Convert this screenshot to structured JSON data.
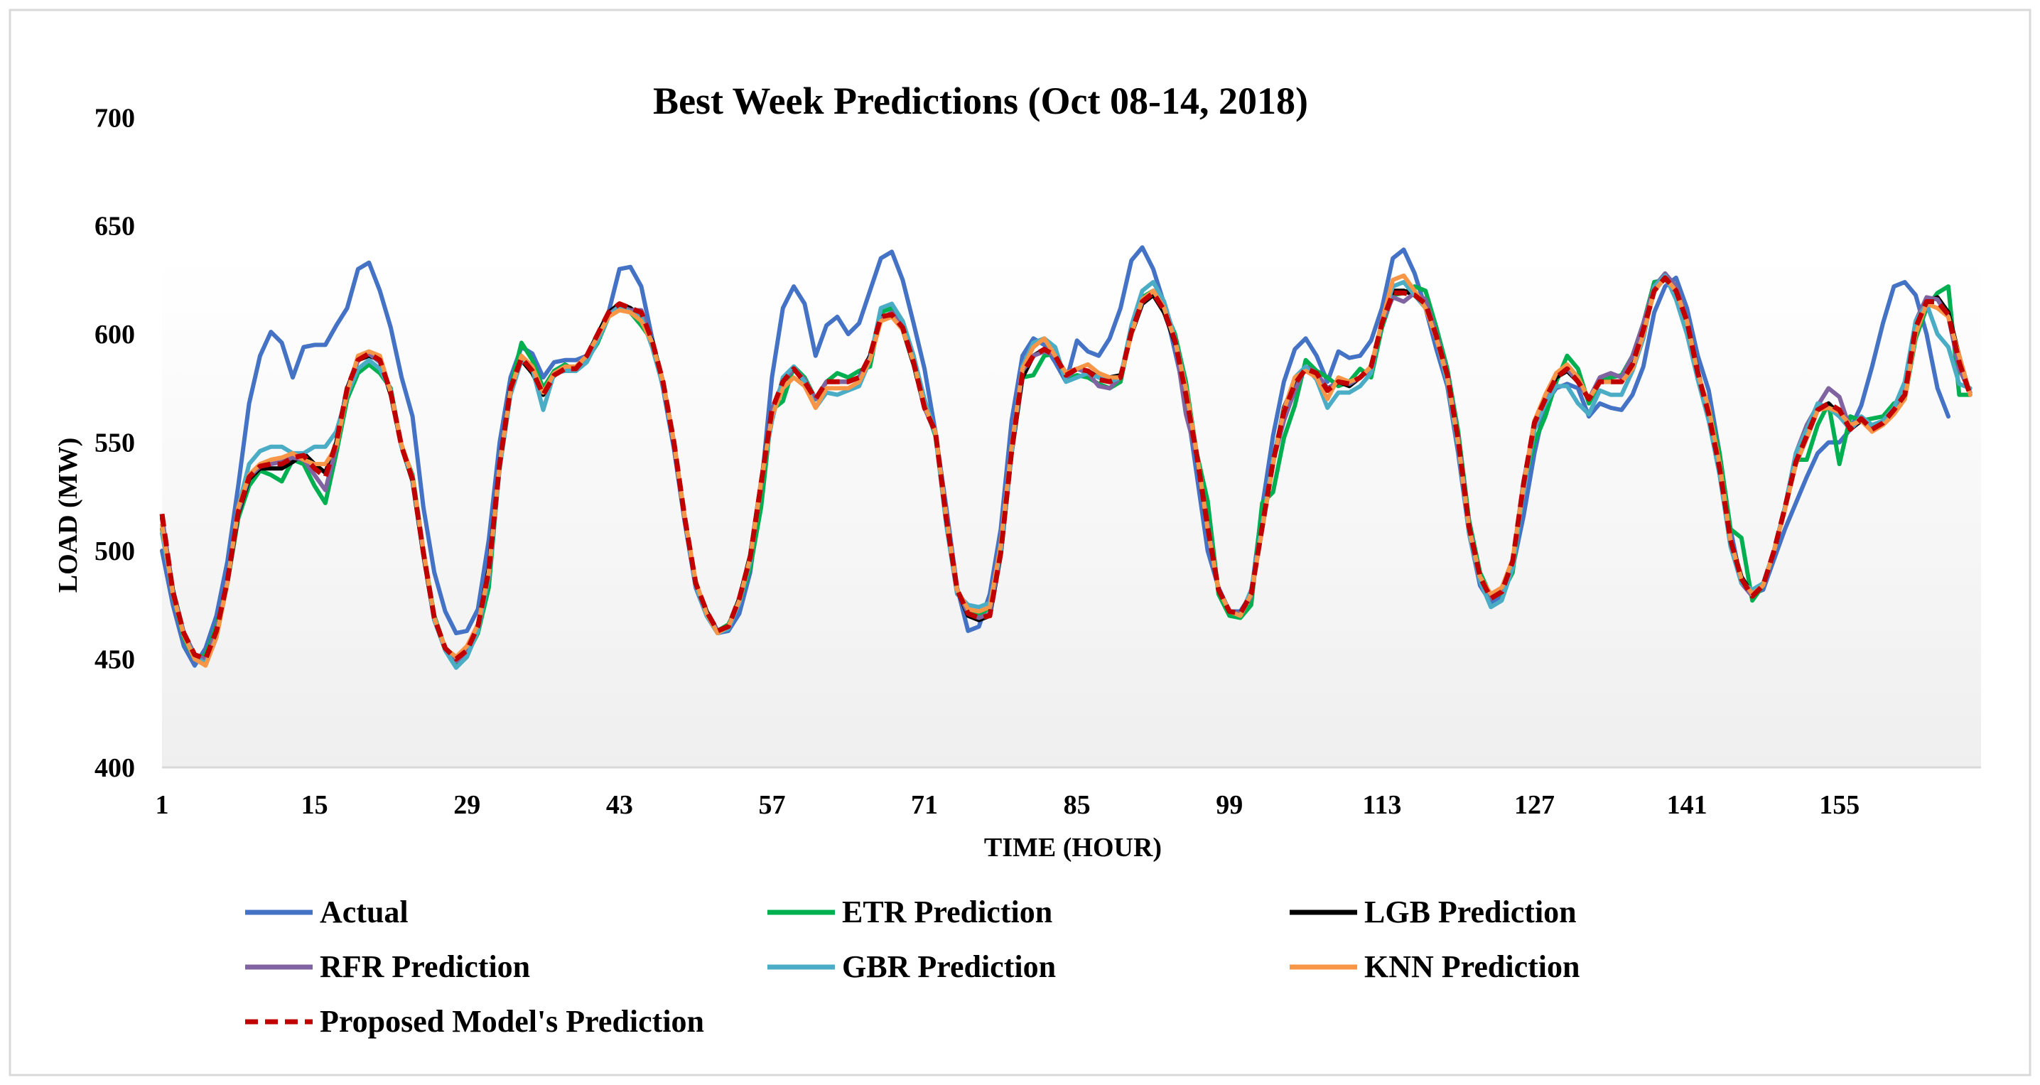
{
  "chart_data": {
    "type": "line",
    "title": "Best Week Predictions (Oct 08-14, 2018)",
    "xlabel": "TIME (HOUR)",
    "ylabel": "LOAD (MW)",
    "ylim": [
      400,
      700
    ],
    "yticks": [
      400,
      450,
      500,
      550,
      600,
      650,
      700
    ],
    "xlim": [
      1,
      168
    ],
    "xticks": [
      1,
      15,
      29,
      43,
      57,
      71,
      85,
      99,
      113,
      127,
      141,
      155
    ],
    "legend_position": "bottom",
    "series": [
      {
        "name": "Actual",
        "color": "#4472C4",
        "dash": false,
        "values": [
          500,
          475,
          456,
          447,
          455,
          470,
          495,
          530,
          568,
          590,
          601,
          596,
          580,
          594,
          595,
          595,
          604,
          612,
          630,
          633,
          620,
          603,
          580,
          562,
          520,
          490,
          472,
          462,
          463,
          473,
          505,
          550,
          580,
          594,
          591,
          580,
          587,
          588,
          588,
          590,
          600,
          610,
          630,
          631,
          622,
          598,
          575,
          547,
          513,
          483,
          470,
          462,
          463,
          471,
          490,
          528,
          580,
          612,
          622,
          614,
          590,
          604,
          608,
          600,
          605,
          620,
          635,
          638,
          625,
          605,
          584,
          555,
          520,
          483,
          463,
          465,
          480,
          510,
          560,
          590,
          598,
          595,
          587,
          578,
          597,
          592,
          590,
          598,
          612,
          634,
          640,
          630,
          614,
          592,
          570,
          535,
          500,
          483,
          472,
          472,
          480,
          520,
          553,
          578,
          593,
          598,
          590,
          578,
          592,
          589,
          590,
          597,
          612,
          635,
          639,
          628,
          612,
          593,
          576,
          545,
          508,
          484,
          476,
          479,
          492,
          516,
          545,
          568,
          575,
          577,
          575,
          562,
          568,
          566,
          565,
          572,
          585,
          610,
          622,
          626,
          612,
          590,
          574,
          545,
          510,
          485,
          480,
          482,
          496,
          510,
          522,
          534,
          545,
          550,
          550,
          556,
          567,
          585,
          605,
          622,
          624,
          618,
          600,
          575,
          562
        ]
      },
      {
        "name": "ETR Prediction",
        "color": "#00B050",
        "dash": false,
        "values": [
          510,
          480,
          460,
          450,
          452,
          465,
          485,
          515,
          530,
          537,
          535,
          532,
          542,
          540,
          530,
          522,
          545,
          570,
          582,
          586,
          582,
          575,
          548,
          535,
          500,
          470,
          455,
          448,
          452,
          462,
          483,
          540,
          575,
          596,
          588,
          575,
          583,
          586,
          583,
          588,
          596,
          608,
          612,
          610,
          604,
          597,
          578,
          550,
          515,
          485,
          470,
          463,
          466,
          476,
          492,
          520,
          565,
          569,
          585,
          580,
          570,
          578,
          582,
          580,
          583,
          585,
          610,
          612,
          606,
          590,
          568,
          553,
          516,
          482,
          472,
          470,
          474,
          500,
          548,
          580,
          581,
          590,
          591,
          579,
          581,
          580,
          577,
          575,
          578,
          602,
          617,
          620,
          612,
          600,
          578,
          545,
          523,
          480,
          470,
          469,
          475,
          522,
          527,
          552,
          567,
          588,
          583,
          580,
          576,
          578,
          584,
          580,
          603,
          618,
          619,
          622,
          620,
          603,
          584,
          555,
          514,
          490,
          479,
          480,
          490,
          530,
          550,
          562,
          578,
          590,
          584,
          568,
          578,
          580,
          581,
          590,
          605,
          624,
          625,
          622,
          607,
          581,
          566,
          545,
          510,
          506,
          477,
          484,
          500,
          520,
          542,
          542,
          558,
          568,
          540,
          562,
          560,
          561,
          562,
          568,
          570,
          598,
          612,
          619,
          622,
          572,
          572
        ]
      },
      {
        "name": "LGB Prediction",
        "color": "#000000",
        "dash": false,
        "values": [
          515,
          482,
          462,
          452,
          450,
          462,
          485,
          517,
          533,
          538,
          538,
          538,
          541,
          545,
          540,
          536,
          550,
          575,
          588,
          590,
          588,
          572,
          548,
          532,
          498,
          468,
          455,
          450,
          454,
          465,
          492,
          540,
          575,
          588,
          582,
          572,
          581,
          584,
          584,
          590,
          600,
          610,
          614,
          612,
          608,
          597,
          578,
          550,
          515,
          485,
          472,
          463,
          465,
          478,
          498,
          532,
          565,
          578,
          584,
          578,
          570,
          578,
          578,
          578,
          580,
          590,
          608,
          609,
          602,
          586,
          566,
          555,
          515,
          482,
          470,
          468,
          470,
          498,
          545,
          580,
          590,
          593,
          590,
          582,
          584,
          583,
          580,
          580,
          581,
          600,
          614,
          618,
          610,
          596,
          572,
          544,
          510,
          482,
          472,
          471,
          480,
          510,
          540,
          566,
          578,
          584,
          582,
          574,
          578,
          576,
          580,
          585,
          605,
          620,
          620,
          618,
          614,
          598,
          582,
          550,
          510,
          488,
          478,
          481,
          495,
          530,
          560,
          570,
          580,
          583,
          578,
          570,
          578,
          578,
          578,
          585,
          600,
          620,
          626,
          620,
          606,
          583,
          563,
          538,
          505,
          488,
          480,
          484,
          500,
          520,
          540,
          552,
          565,
          568,
          563,
          556,
          560,
          556,
          560,
          564,
          572,
          602,
          615,
          617,
          610,
          590,
          572
        ]
      },
      {
        "name": "RFR Prediction",
        "color": "#8064A2",
        "dash": false,
        "values": [
          516,
          481,
          462,
          452,
          450,
          463,
          486,
          518,
          534,
          539,
          540,
          541,
          543,
          542,
          535,
          528,
          548,
          574,
          588,
          591,
          587,
          574,
          548,
          533,
          499,
          469,
          455,
          449,
          453,
          464,
          490,
          540,
          574,
          590,
          584,
          573,
          582,
          585,
          584,
          589,
          598,
          609,
          613,
          611,
          611,
          596,
          578,
          550,
          515,
          485,
          471,
          463,
          465,
          477,
          496,
          530,
          565,
          578,
          584,
          579,
          570,
          578,
          578,
          578,
          580,
          589,
          607,
          610,
          604,
          588,
          566,
          554,
          516,
          482,
          471,
          469,
          471,
          499,
          546,
          583,
          590,
          592,
          590,
          580,
          584,
          582,
          576,
          575,
          580,
          601,
          615,
          620,
          612,
          597,
          563,
          544,
          512,
          482,
          472,
          471,
          479,
          512,
          541,
          560,
          574,
          585,
          582,
          575,
          578,
          577,
          580,
          584,
          605,
          617,
          615,
          619,
          616,
          600,
          582,
          552,
          512,
          488,
          478,
          481,
          495,
          532,
          558,
          570,
          582,
          584,
          578,
          570,
          580,
          582,
          580,
          590,
          605,
          622,
          628,
          622,
          607,
          582,
          563,
          538,
          505,
          485,
          479,
          484,
          500,
          520,
          545,
          558,
          567,
          575,
          571,
          556,
          561,
          555,
          559,
          566,
          572,
          606,
          617,
          616,
          608,
          584,
          573
        ]
      },
      {
        "name": "GBR Prediction",
        "color": "#4BACC6",
        "dash": false,
        "values": [
          508,
          481,
          461,
          451,
          448,
          460,
          485,
          520,
          540,
          546,
          548,
          548,
          545,
          545,
          548,
          548,
          555,
          572,
          584,
          588,
          584,
          574,
          548,
          533,
          500,
          468,
          454,
          446,
          451,
          463,
          488,
          538,
          572,
          588,
          584,
          565,
          582,
          583,
          583,
          587,
          597,
          608,
          613,
          610,
          608,
          594,
          576,
          550,
          515,
          484,
          470,
          462,
          464,
          476,
          495,
          532,
          560,
          580,
          585,
          578,
          566,
          573,
          572,
          574,
          576,
          588,
          612,
          614,
          606,
          590,
          570,
          554,
          512,
          480,
          475,
          474,
          476,
          500,
          545,
          585,
          596,
          598,
          594,
          578,
          580,
          582,
          580,
          578,
          580,
          604,
          620,
          624,
          615,
          598,
          575,
          545,
          510,
          482,
          472,
          470,
          482,
          512,
          542,
          565,
          580,
          585,
          579,
          566,
          573,
          573,
          576,
          582,
          606,
          622,
          624,
          618,
          612,
          598,
          578,
          548,
          508,
          486,
          474,
          477,
          492,
          528,
          556,
          568,
          576,
          576,
          568,
          563,
          574,
          572,
          572,
          583,
          598,
          622,
          627,
          616,
          600,
          579,
          560,
          535,
          502,
          485,
          482,
          485,
          500,
          520,
          545,
          556,
          568,
          566,
          562,
          556,
          562,
          558,
          560,
          566,
          578,
          606,
          614,
          600,
          594,
          577,
          575
        ]
      },
      {
        "name": "KNN Prediction",
        "color": "#F79646",
        "dash": false,
        "values": [
          512,
          480,
          461,
          450,
          447,
          460,
          485,
          520,
          535,
          540,
          542,
          543,
          545,
          542,
          540,
          540,
          548,
          573,
          590,
          592,
          590,
          573,
          549,
          534,
          500,
          469,
          455,
          451,
          456,
          466,
          490,
          540,
          574,
          590,
          585,
          573,
          582,
          585,
          585,
          590,
          599,
          608,
          611,
          610,
          606,
          596,
          578,
          550,
          515,
          486,
          471,
          462,
          465,
          477,
          497,
          532,
          562,
          575,
          580,
          576,
          566,
          575,
          575,
          575,
          578,
          588,
          606,
          608,
          602,
          587,
          567,
          555,
          516,
          482,
          473,
          472,
          474,
          503,
          548,
          584,
          594,
          598,
          590,
          582,
          584,
          586,
          582,
          580,
          580,
          600,
          616,
          620,
          612,
          597,
          575,
          545,
          510,
          482,
          472,
          470,
          480,
          510,
          540,
          565,
          580,
          583,
          580,
          570,
          580,
          578,
          580,
          585,
          606,
          625,
          627,
          620,
          612,
          598,
          580,
          550,
          510,
          488,
          480,
          483,
          496,
          530,
          560,
          572,
          582,
          586,
          580,
          570,
          578,
          578,
          578,
          584,
          600,
          620,
          626,
          620,
          606,
          582,
          566,
          540,
          505,
          487,
          480,
          484,
          500,
          519,
          540,
          552,
          565,
          566,
          564,
          558,
          560,
          555,
          558,
          563,
          570,
          600,
          614,
          612,
          608,
          590,
          572
        ]
      },
      {
        "name": "Proposed Model's Prediction",
        "color": "#C00000",
        "dash": true,
        "values": [
          517,
          481,
          462,
          452,
          450,
          463,
          486,
          518,
          534,
          539,
          540,
          540,
          543,
          544,
          538,
          534,
          550,
          575,
          588,
          591,
          588,
          573,
          548,
          533,
          499,
          469,
          455,
          450,
          454,
          465,
          491,
          540,
          575,
          589,
          583,
          572,
          581,
          584,
          584,
          590,
          600,
          610,
          614,
          612,
          610,
          597,
          578,
          550,
          515,
          485,
          472,
          463,
          465,
          478,
          497,
          531,
          565,
          578,
          584,
          578,
          570,
          578,
          578,
          578,
          580,
          590,
          608,
          609,
          603,
          587,
          566,
          555,
          515,
          482,
          471,
          469,
          470,
          499,
          546,
          582,
          590,
          593,
          590,
          581,
          584,
          583,
          579,
          578,
          580,
          601,
          615,
          619,
          611,
          597,
          572,
          544,
          511,
          482,
          472,
          471,
          480,
          511,
          541,
          564,
          577,
          584,
          582,
          574,
          578,
          577,
          580,
          585,
          605,
          619,
          619,
          618,
          614,
          599,
          581,
          551,
          511,
          488,
          478,
          481,
          495,
          531,
          559,
          570,
          580,
          584,
          578,
          570,
          578,
          578,
          578,
          586,
          602,
          620,
          626,
          620,
          606,
          582,
          563,
          538,
          505,
          487,
          479,
          484,
          500,
          520,
          541,
          553,
          565,
          568,
          565,
          556,
          561,
          556,
          559,
          565,
          572,
          603,
          615,
          615,
          609,
          587,
          572
        ]
      }
    ]
  }
}
